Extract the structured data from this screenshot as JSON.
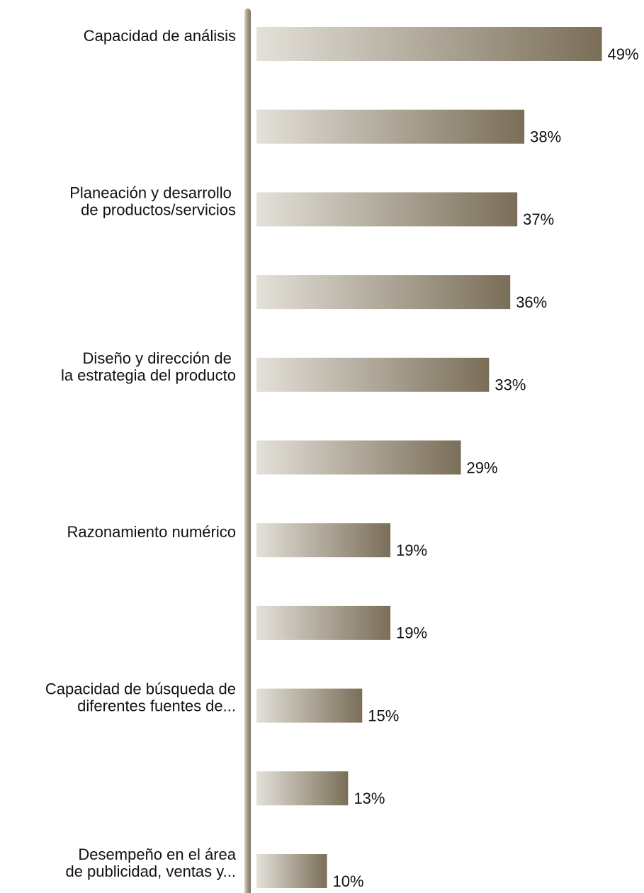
{
  "chart_data": {
    "type": "bar",
    "orientation": "horizontal",
    "categories": [
      "Capacidad de análisis",
      null,
      "Planeación y desarrollo \nde productos/servicios",
      null,
      "Diseño y dirección de \nla estrategia del producto",
      null,
      "Razonamiento numérico",
      null,
      "Capacidad de búsqueda de\ndiferentes fuentes de...",
      null,
      "Desempeño en el área\nde publicidad, ventas y..."
    ],
    "values": [
      49,
      38,
      37,
      36,
      33,
      29,
      19,
      19,
      15,
      13,
      10
    ],
    "value_labels": [
      "49%",
      "38%",
      "37%",
      "36%",
      "33%",
      "29%",
      "19%",
      "19%",
      "15%",
      "13%",
      "10%"
    ],
    "color": [
      "#e4e1da",
      "#7a6e58"
    ]
  }
}
